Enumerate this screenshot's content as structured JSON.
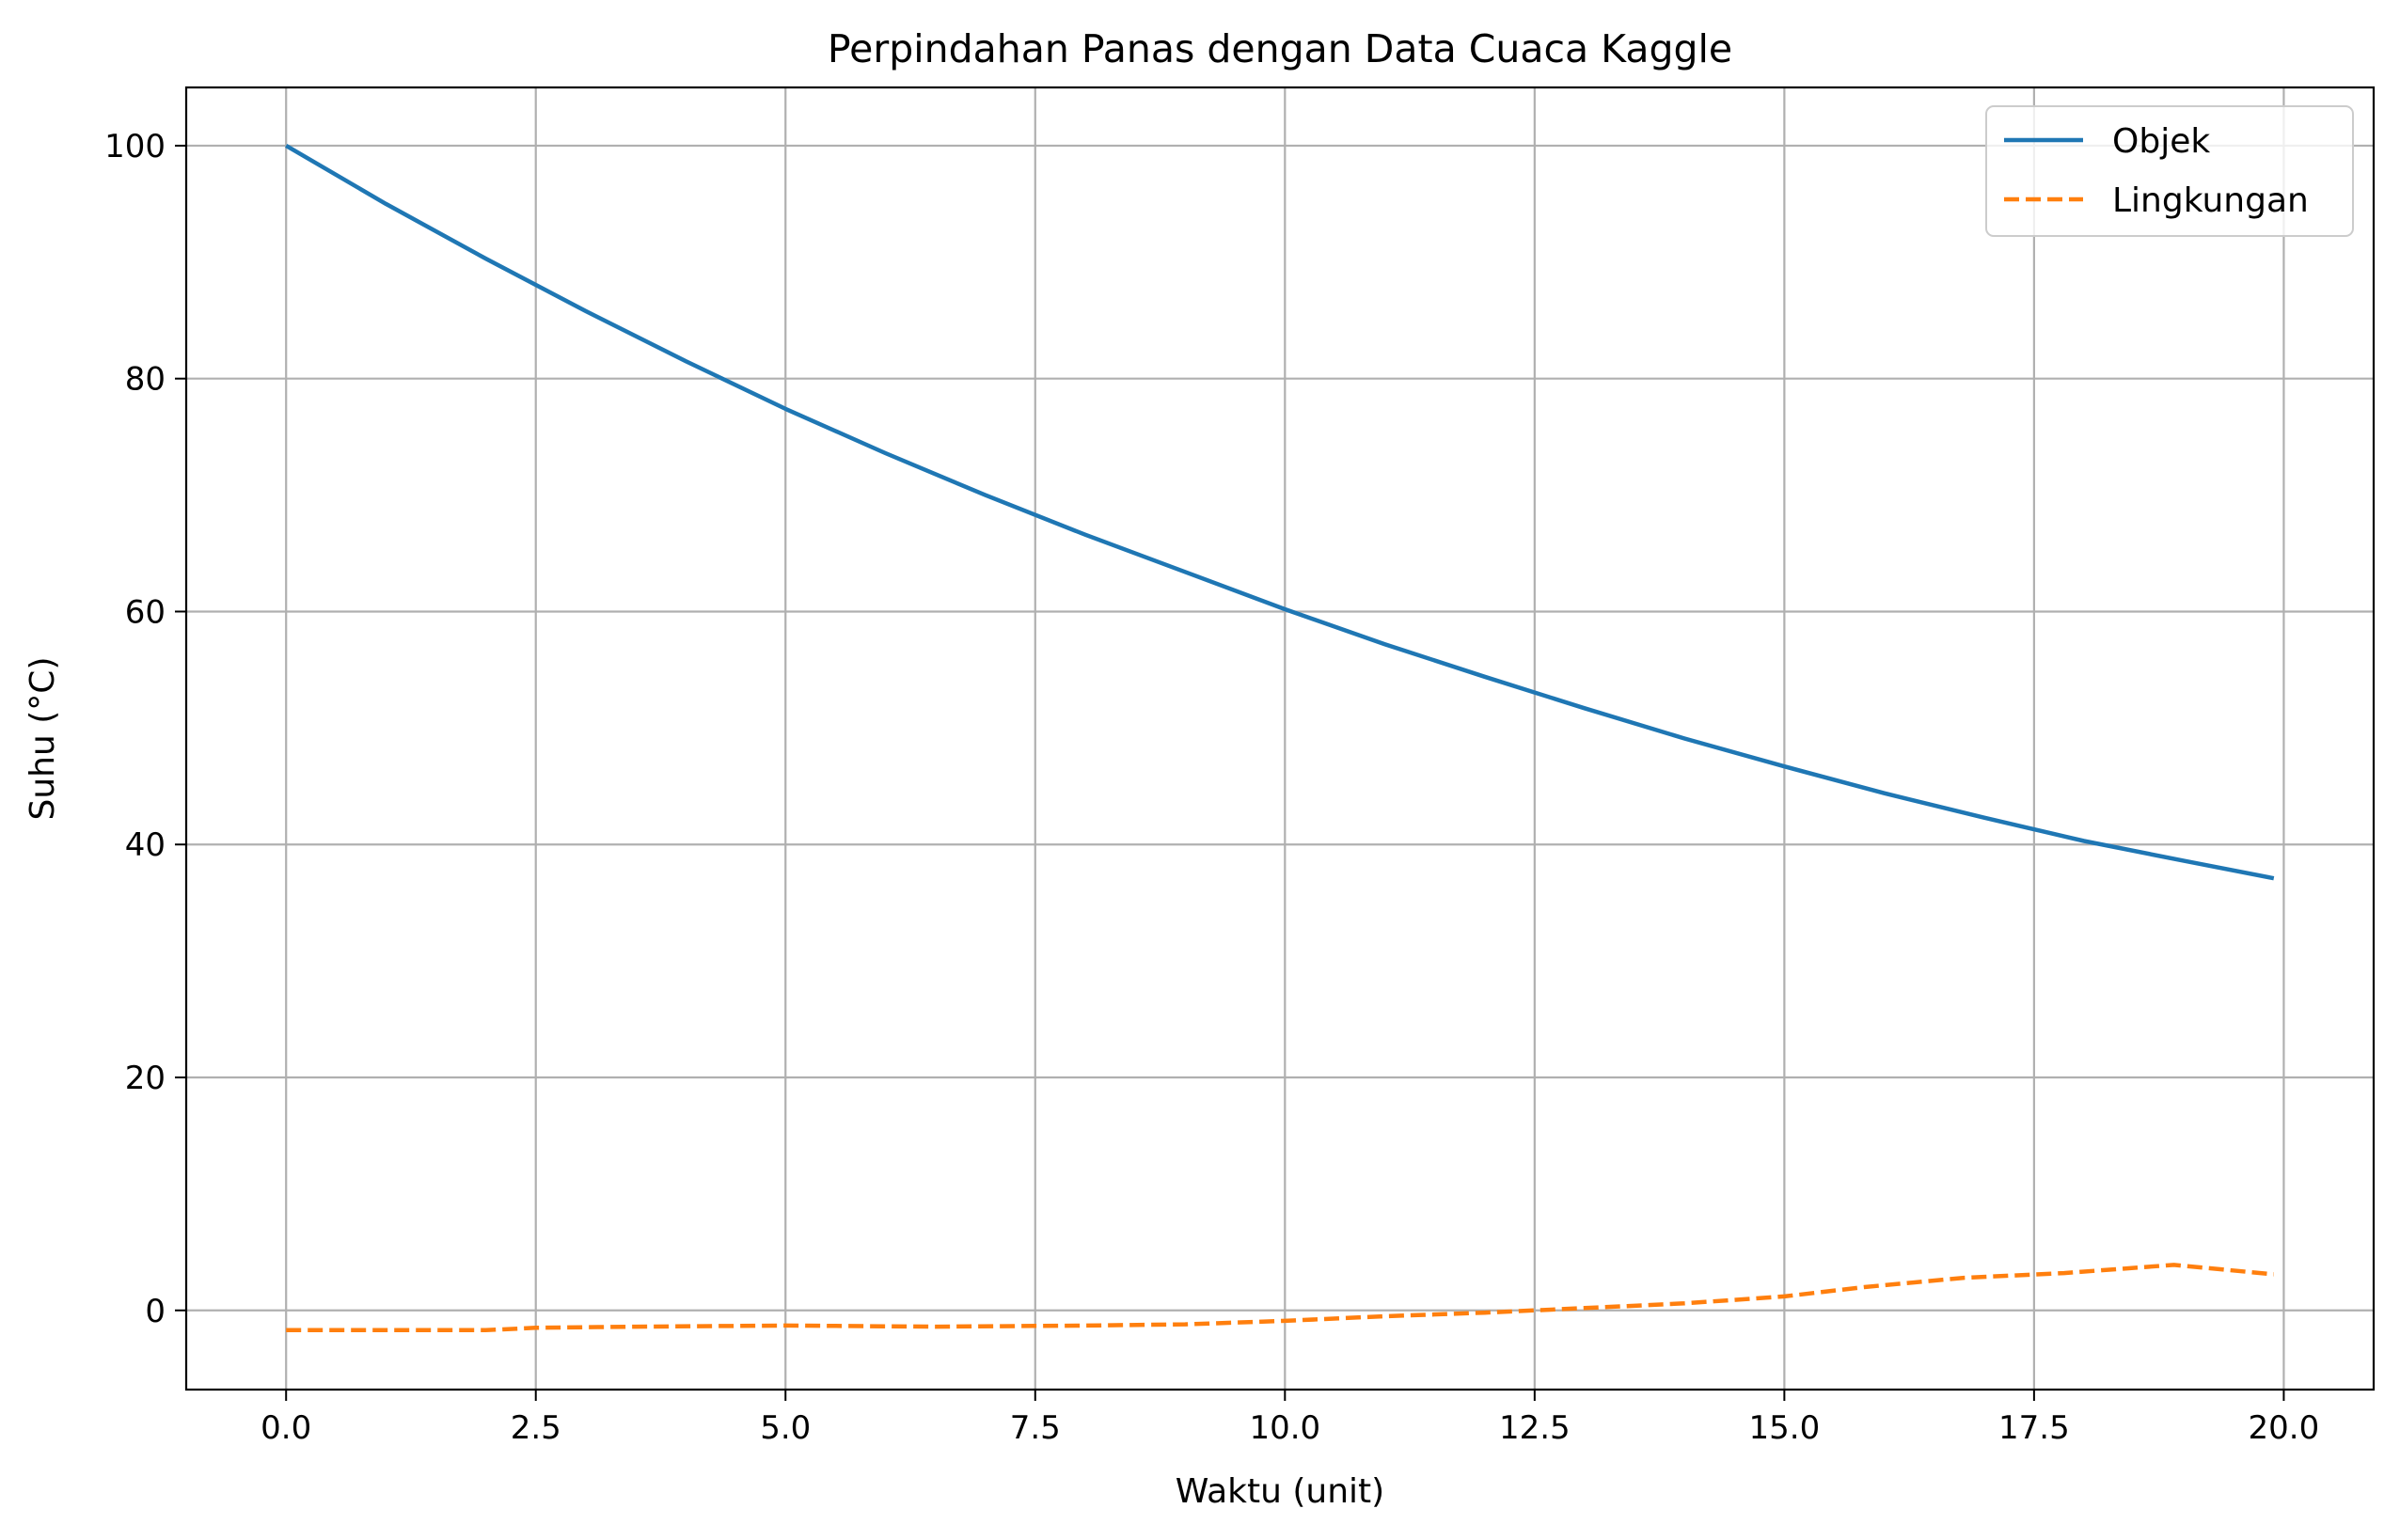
{
  "chart_data": {
    "type": "line",
    "title": "Perpindahan Panas dengan Data Cuaca Kaggle",
    "xlabel": "Waktu (unit)",
    "ylabel": "Suhu (°C)",
    "xlim": [
      -1.0,
      20.9
    ],
    "ylim": [
      -6.8,
      105.0
    ],
    "xticks": [
      0.0,
      2.5,
      5.0,
      7.5,
      10.0,
      12.5,
      15.0,
      17.5,
      20.0
    ],
    "xtick_labels": [
      "0.0",
      "2.5",
      "5.0",
      "7.5",
      "10.0",
      "12.5",
      "15.0",
      "17.5",
      "20.0"
    ],
    "yticks": [
      0,
      20,
      40,
      60,
      80,
      100
    ],
    "ytick_labels": [
      "0",
      "20",
      "40",
      "60",
      "80",
      "100"
    ],
    "grid": true,
    "legend_position": "top-right",
    "series": [
      {
        "name": "Objek",
        "color": "#1f77b4",
        "style": "solid",
        "x": [
          0.0,
          1.0,
          2.0,
          3.0,
          4.0,
          5.0,
          6.0,
          7.0,
          8.0,
          9.0,
          10.0,
          11.0,
          12.0,
          13.0,
          14.0,
          15.0,
          16.0,
          17.0,
          18.0,
          19.0,
          19.9
        ],
        "y": [
          100.0,
          95.0,
          90.3,
          85.8,
          81.5,
          77.4,
          73.6,
          70.0,
          66.6,
          63.4,
          60.2,
          57.2,
          54.4,
          51.7,
          49.1,
          46.7,
          44.4,
          42.3,
          40.3,
          38.6,
          37.1
        ]
      },
      {
        "name": "Lingkungan",
        "color": "#ff7f0e",
        "style": "dashed",
        "x": [
          0.0,
          1.0,
          2.0,
          2.5,
          3.5,
          5.0,
          6.5,
          8.0,
          9.0,
          10.0,
          11.0,
          12.0,
          13.0,
          14.0,
          15.0,
          15.8,
          16.8,
          17.8,
          18.9,
          19.9
        ],
        "y": [
          -1.7,
          -1.7,
          -1.7,
          -1.5,
          -1.4,
          -1.3,
          -1.4,
          -1.3,
          -1.2,
          -0.9,
          -0.5,
          -0.2,
          0.2,
          0.6,
          1.2,
          2.0,
          2.8,
          3.2,
          3.9,
          3.1
        ]
      }
    ]
  }
}
